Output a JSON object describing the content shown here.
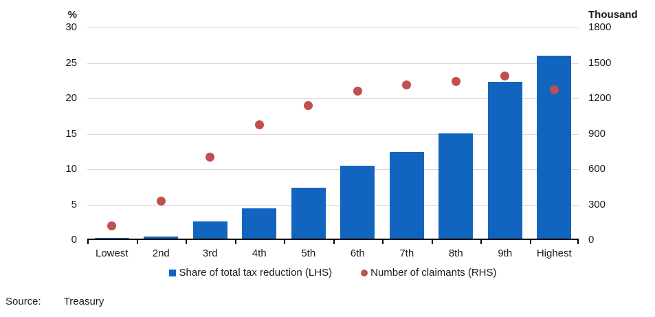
{
  "chart_data": {
    "type": "bar",
    "categories": [
      "Lowest",
      "2nd",
      "3rd",
      "4th",
      "5th",
      "6th",
      "7th",
      "8th",
      "9th",
      "Highest"
    ],
    "series": [
      {
        "name": "Share of total tax reduction (LHS)",
        "type": "bar",
        "axis": "left",
        "unit": "%",
        "color": "#1165bf",
        "values": [
          0.1,
          0.3,
          2.4,
          4.3,
          7.2,
          10.3,
          12.2,
          14.9,
          22.1,
          25.8
        ]
      },
      {
        "name": "Number of claimants (RHS)",
        "type": "scatter",
        "axis": "right",
        "unit": "Thousand",
        "color": "#c0504d",
        "values": [
          120,
          330,
          700,
          975,
          1140,
          1260,
          1315,
          1340,
          1390,
          1270
        ]
      }
    ],
    "title": "",
    "xlabel": "",
    "left_axis": {
      "label": "%",
      "ticks": [
        30,
        25,
        20,
        15,
        10,
        5,
        0
      ],
      "min": 0,
      "max": 30
    },
    "right_axis": {
      "label": "Thousand",
      "ticks": [
        1800,
        1500,
        1200,
        900,
        600,
        300,
        0
      ],
      "min": 0,
      "max": 1800
    },
    "grid": true,
    "legend_position": "bottom"
  },
  "legend": {
    "bar_label": "Share of total tax reduction (LHS)",
    "dot_label": "Number of claimants (RHS)"
  },
  "axes": {
    "left_unit": "%",
    "right_unit": "Thousand"
  },
  "source": {
    "prefix": "Source:",
    "value": "Treasury"
  },
  "colors": {
    "bar": "#1165bf",
    "dot": "#c0504d",
    "gridline": "#d9d9d9",
    "axis_line": "#000000",
    "text": "#1a1a1a"
  }
}
